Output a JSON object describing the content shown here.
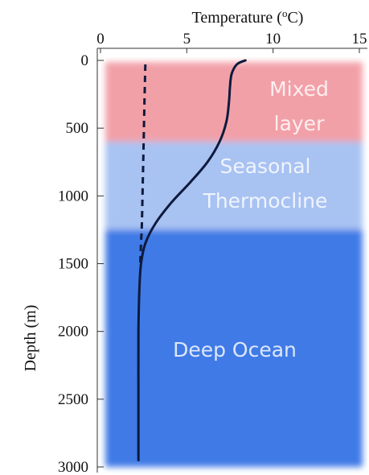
{
  "chart_data": {
    "type": "line",
    "xlabel_prefix": "Temperature (",
    "xlabel_unit_sup": "o",
    "xlabel_suffix": "C)",
    "ylabel": "Depth (m)",
    "x_axis_position": "top",
    "xlim": [
      0,
      15
    ],
    "ylim": [
      3000,
      0
    ],
    "x_ticks": [
      0,
      5,
      10,
      15
    ],
    "y_ticks": [
      0,
      500,
      1000,
      1500,
      2000,
      2500,
      3000
    ],
    "grid": false,
    "zones": [
      {
        "name": "Mixed layer",
        "label_lines": [
          "Mixed",
          "layer"
        ],
        "depth_range": [
          0,
          600
        ],
        "color": "#f2a0a8"
      },
      {
        "name": "Seasonal Thermocline",
        "label_lines": [
          "Seasonal",
          "Thermocline"
        ],
        "depth_range": [
          600,
          1250
        ],
        "color": "#a8c2f2"
      },
      {
        "name": "Deep Ocean",
        "label_lines": [
          "Deep Ocean"
        ],
        "depth_range": [
          1250,
          3000
        ],
        "color": "#3f7ae6"
      }
    ],
    "series": [
      {
        "style": "solid",
        "color": "#0d1a3d",
        "x": [
          8.4,
          7.9,
          7.6,
          7.5,
          7.45,
          7.3,
          6.9,
          6.2,
          5.2,
          4.1,
          3.2,
          2.6,
          2.35,
          2.25,
          2.2,
          2.2,
          2.2
        ],
        "y": [
          0,
          30,
          100,
          200,
          300,
          450,
          600,
          750,
          900,
          1050,
          1200,
          1350,
          1500,
          1700,
          2000,
          2500,
          2950
        ]
      },
      {
        "style": "dashed",
        "color": "#0d1a3d",
        "x": [
          2.6,
          2.55,
          2.5,
          2.45,
          2.4,
          2.35,
          2.3
        ],
        "y": [
          30,
          300,
          600,
          900,
          1200,
          1350,
          1500
        ]
      }
    ]
  }
}
